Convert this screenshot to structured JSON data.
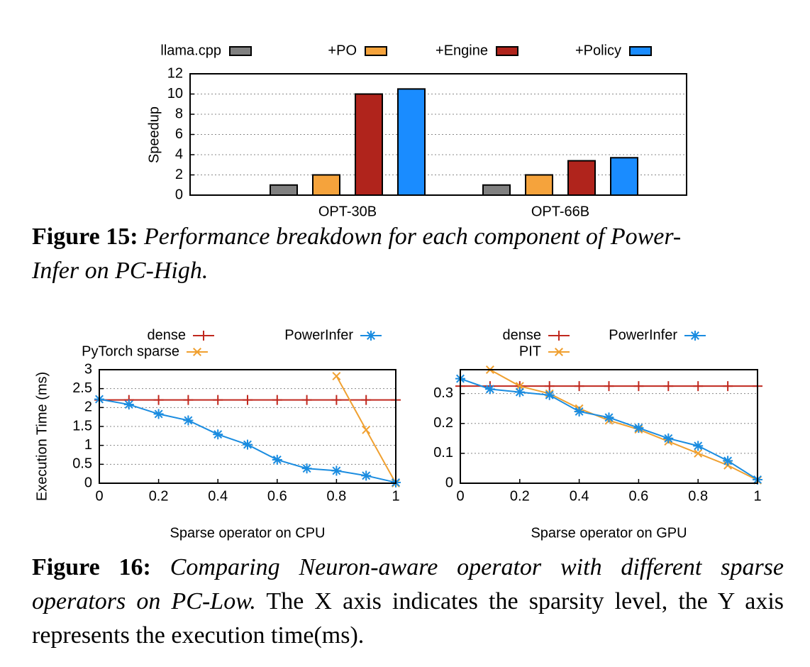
{
  "chart_data": [
    {
      "type": "bar",
      "ylabel": "Speedup",
      "categories": [
        "OPT-30B",
        "OPT-66B"
      ],
      "series": [
        {
          "name": "llama.cpp",
          "color": "#808080",
          "values": [
            1,
            1
          ]
        },
        {
          "name": "+PO",
          "color": "#f5a33c",
          "values": [
            2,
            2
          ]
        },
        {
          "name": "+Engine",
          "color": "#b0241c",
          "values": [
            10,
            3.4
          ]
        },
        {
          "name": "+Policy",
          "color": "#1a8cff",
          "values": [
            10.5,
            3.7
          ]
        }
      ],
      "ylim": [
        0,
        12
      ],
      "yticks": [
        0,
        2,
        4,
        6,
        8,
        10,
        12
      ],
      "grid": true
    },
    {
      "type": "line",
      "xlabel": "Sparse operator on CPU",
      "ylabel": "Execution Time (ms)",
      "xlim": [
        0,
        1
      ],
      "xticks": [
        0,
        0.2,
        0.4,
        0.6,
        0.8,
        1
      ],
      "ylim": [
        0,
        3
      ],
      "yticks": [
        0,
        0.5,
        1,
        1.5,
        2,
        2.5,
        3
      ],
      "grid": true,
      "series": [
        {
          "name": "dense",
          "color": "#c0281e",
          "marker": "+",
          "x": [
            0,
            0.1,
            0.2,
            0.3,
            0.4,
            0.5,
            0.6,
            0.7,
            0.8,
            0.9,
            1
          ],
          "values": [
            2.2,
            2.2,
            2.2,
            2.2,
            2.2,
            2.2,
            2.2,
            2.2,
            2.2,
            2.2,
            2.2
          ]
        },
        {
          "name": "PyTorch sparse",
          "color": "#f0a030",
          "marker": "x",
          "x": [
            0.8,
            0.9,
            1
          ],
          "values": [
            2.83,
            1.41,
            0
          ]
        },
        {
          "name": "PowerInfer",
          "color": "#1a8ce0",
          "marker": "*",
          "x": [
            0,
            0.1,
            0.2,
            0.3,
            0.4,
            0.5,
            0.6,
            0.7,
            0.8,
            0.9,
            1
          ],
          "values": [
            2.22,
            2.08,
            1.83,
            1.66,
            1.29,
            1.02,
            0.62,
            0.39,
            0.33,
            0.2,
            0.02
          ]
        }
      ]
    },
    {
      "type": "line",
      "xlabel": "Sparse operator on GPU",
      "xlim": [
        0,
        1
      ],
      "xticks": [
        0,
        0.2,
        0.4,
        0.6,
        0.8,
        1
      ],
      "ylim": [
        0,
        0.38
      ],
      "yticks": [
        0,
        0.1,
        0.2,
        0.3
      ],
      "grid": true,
      "series": [
        {
          "name": "dense",
          "color": "#c0281e",
          "marker": "+",
          "x": [
            0,
            0.1,
            0.2,
            0.3,
            0.4,
            0.5,
            0.6,
            0.7,
            0.8,
            0.9,
            1
          ],
          "values": [
            0.325,
            0.325,
            0.325,
            0.325,
            0.325,
            0.325,
            0.325,
            0.325,
            0.325,
            0.325,
            0.325
          ]
        },
        {
          "name": "PIT",
          "color": "#f0a030",
          "marker": "x",
          "x": [
            0.1,
            0.2,
            0.3,
            0.4,
            0.5,
            0.6,
            0.7,
            0.8,
            0.9,
            1
          ],
          "values": [
            0.38,
            0.325,
            0.3,
            0.25,
            0.21,
            0.18,
            0.14,
            0.1,
            0.06,
            0.01
          ]
        },
        {
          "name": "PowerInfer",
          "color": "#1a8ce0",
          "marker": "*",
          "x": [
            0,
            0.1,
            0.2,
            0.3,
            0.4,
            0.5,
            0.6,
            0.7,
            0.8,
            0.9,
            1
          ],
          "values": [
            0.35,
            0.315,
            0.305,
            0.295,
            0.24,
            0.22,
            0.185,
            0.15,
            0.125,
            0.075,
            0.012
          ]
        }
      ]
    }
  ],
  "captions": [
    {
      "label": "Figure 15:",
      "lines": [
        "Performance breakdown for each component of Power-",
        "Infer on PC-High."
      ]
    },
    {
      "label": "Figure 16:",
      "italic": "Comparing Neuron-aware operator with different sparse operators on PC-Low.",
      "text": "The X axis indicates the sparsity level, the Y axis represents the execution time(ms)."
    }
  ]
}
